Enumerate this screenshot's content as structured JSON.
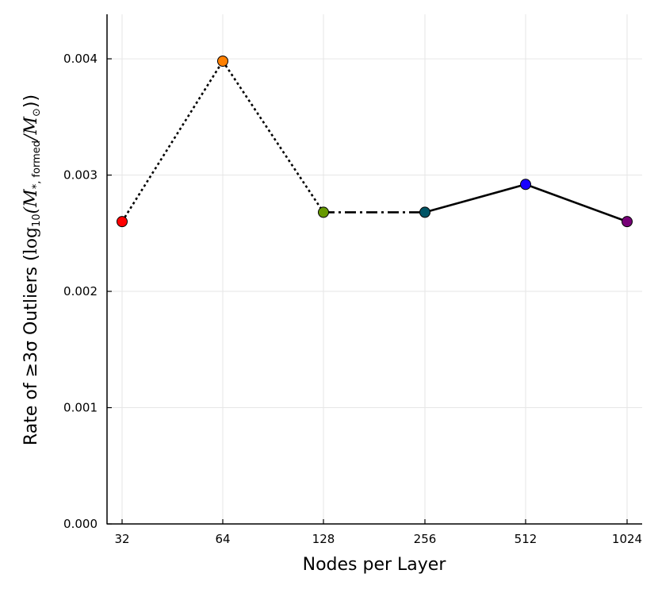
{
  "chart_data": {
    "type": "line",
    "categories": [
      "32",
      "64",
      "128",
      "256",
      "512",
      "1024"
    ],
    "values": [
      0.0026,
      0.00398,
      0.00268,
      0.00268,
      0.00292,
      0.0026
    ],
    "point_colors": [
      "#ff0000",
      "#ff8000",
      "#669900",
      "#005566",
      "#1a00ff",
      "#770077"
    ],
    "segment_styles": [
      "dotted",
      "dotted",
      "dashdot",
      "solid",
      "solid"
    ],
    "xlabel": "Nodes per Layer",
    "ylabel": {
      "prefix": "Rate of ≥3σ Outliers (",
      "math_log": "log",
      "math_log_sub": "10",
      "math_open": "(M",
      "math_sub": "*, formed",
      "math_slash": "/M",
      "math_sub2": "⊙",
      "suffix": "))"
    },
    "yticks": [
      "0.000",
      "0.001",
      "0.002",
      "0.003",
      "0.004"
    ],
    "ytick_values": [
      0,
      0.001,
      0.002,
      0.003,
      0.004
    ],
    "ylim": [
      0,
      0.00398
    ],
    "grid": true,
    "legend": "none"
  }
}
